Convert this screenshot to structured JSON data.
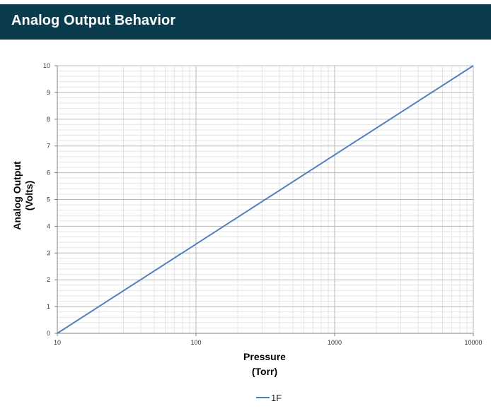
{
  "header": {
    "title": "Analog Output Behavior",
    "background_color": "#0b3c4e"
  },
  "chart_data": {
    "type": "line",
    "title": "",
    "xlabel_lines": [
      "Pressure",
      "(Torr)"
    ],
    "ylabel_lines": [
      "Analog Output",
      "(Volts)"
    ],
    "xscale": "log",
    "xlim": [
      10,
      10000
    ],
    "ylim": [
      0,
      10
    ],
    "x_ticks": [
      10,
      100,
      1000,
      10000
    ],
    "x_tick_labels": [
      "10",
      "100",
      "1000",
      "10000"
    ],
    "y_ticks": [
      0,
      1,
      2,
      3,
      4,
      5,
      6,
      7,
      8,
      9,
      10
    ],
    "y_tick_labels": [
      "0",
      "1",
      "2",
      "3",
      "4",
      "5",
      "6",
      "7",
      "8",
      "9",
      "10"
    ],
    "grid": true,
    "legend_position": "bottom",
    "series": [
      {
        "name": "1F",
        "color": "#4f81bd",
        "x": [
          10,
          100,
          1000,
          10000
        ],
        "y": [
          0,
          3.333,
          6.667,
          10
        ]
      }
    ]
  }
}
